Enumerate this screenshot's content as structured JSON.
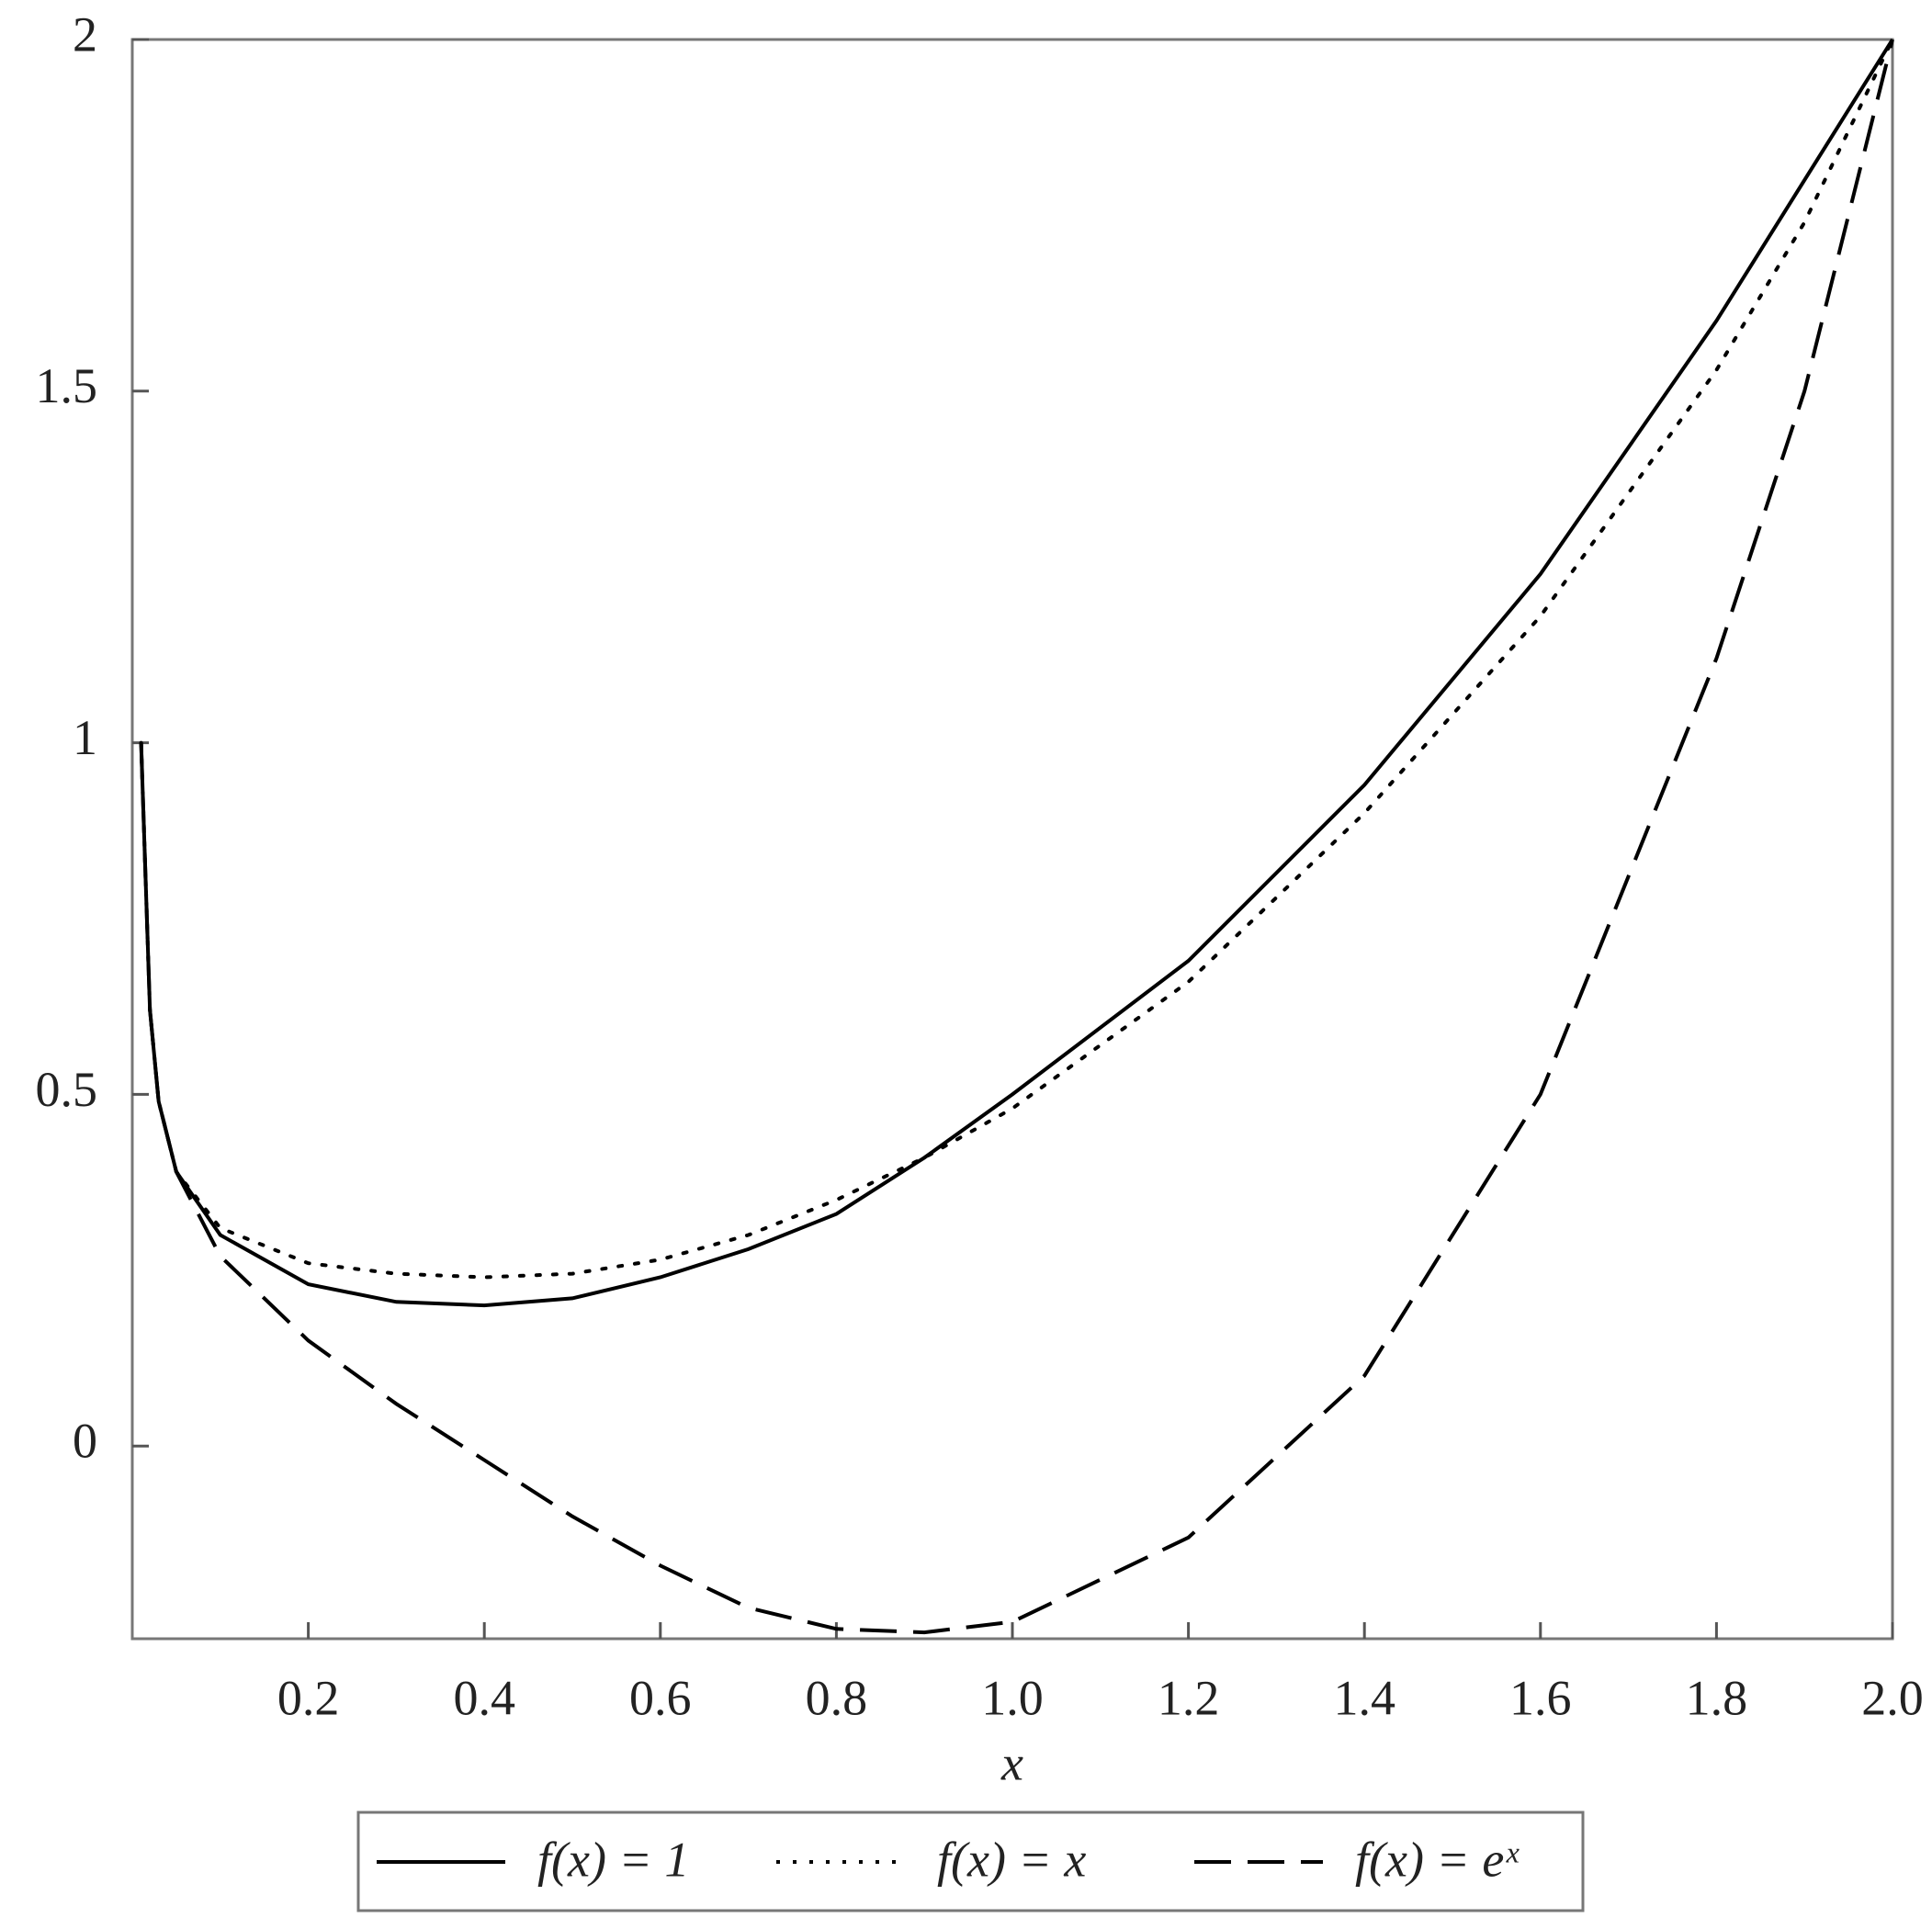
{
  "chart_data": {
    "type": "line",
    "x_label": "x",
    "x": [
      0.01,
      0.02,
      0.03,
      0.05,
      0.1,
      0.2,
      0.3,
      0.4,
      0.5,
      0.6,
      0.7,
      0.8,
      0.9,
      1.0,
      1.2,
      1.4,
      1.6,
      1.8,
      1.9,
      2.0
    ],
    "series": [
      {
        "name": "f(x) = 1",
        "color": "#000000",
        "style": "solid",
        "values": [
          1,
          0.62,
          0.49,
          0.39,
          0.3,
          0.23,
          0.205,
          0.2,
          0.21,
          0.24,
          0.28,
          0.33,
          0.41,
          0.5,
          0.69,
          0.94,
          1.24,
          1.6,
          1.8,
          2.0
        ]
      },
      {
        "name": "f(x) = x",
        "color": "#000000",
        "style": "dotted",
        "values": [
          1,
          0.62,
          0.49,
          0.39,
          0.31,
          0.26,
          0.245,
          0.24,
          0.245,
          0.265,
          0.3,
          0.35,
          0.41,
          0.48,
          0.66,
          0.9,
          1.18,
          1.53,
          1.74,
          2.0
        ]
      },
      {
        "name": "f(x) = eˣ",
        "color": "#000000",
        "style": "dashed",
        "values": [
          1,
          0.62,
          0.49,
          0.39,
          0.27,
          0.15,
          0.06,
          -0.02,
          -0.1,
          -0.17,
          -0.23,
          -0.26,
          -0.265,
          -0.25,
          -0.13,
          0.1,
          0.5,
          1.12,
          1.5,
          2.0
        ]
      }
    ],
    "xlim": [
      0,
      2
    ],
    "ylim": [
      -0.274,
      2
    ],
    "xticks": [
      0.2,
      0.4,
      0.6,
      0.8,
      {
        "value": 1,
        "label": "1.0"
      },
      1.2,
      1.4,
      1.6,
      1.8,
      {
        "value": 2,
        "label": "2.0"
      }
    ],
    "yticks": [
      0,
      0.5,
      1,
      1.5,
      2
    ],
    "grid": false,
    "legend": "bottom"
  }
}
